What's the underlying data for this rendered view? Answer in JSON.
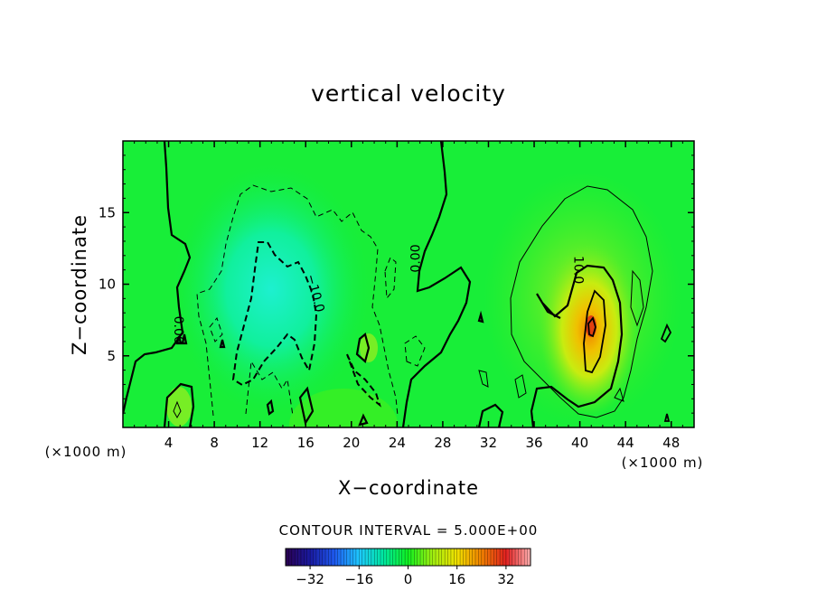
{
  "chart_data": {
    "type": "heatmap",
    "title": "vertical velocity",
    "xlabel": "X−coordinate",
    "ylabel": "Z−coordinate",
    "x_unit": "(×1000 m)",
    "y_unit": "(×1000 m)",
    "xlim": [
      0,
      50
    ],
    "ylim": [
      0,
      20
    ],
    "x_ticks": [
      4,
      8,
      12,
      16,
      20,
      24,
      28,
      32,
      36,
      40,
      44,
      48
    ],
    "x_tick_labels": [
      "4",
      "8",
      "12",
      "16",
      "20",
      "24",
      "28",
      "32",
      "36",
      "40",
      "44",
      "48"
    ],
    "y_ticks": [
      5,
      10,
      15
    ],
    "y_tick_labels": [
      "5",
      "10",
      "15"
    ],
    "contour_interval_text": "CONTOUR INTERVAL = 5.000E+00",
    "contour_interval": 5,
    "contour_labels": [
      {
        "text": "0.00",
        "x": 4.5,
        "z": 6.8,
        "angle": 90
      },
      {
        "text": "−10.0",
        "x": 16.5,
        "z": 9.3,
        "angle": 75
      },
      {
        "text": "0.00",
        "x": 26,
        "z": 11.8,
        "angle": -90
      },
      {
        "text": "10.0",
        "x": 39.5,
        "z": 11.0,
        "angle": 90
      }
    ],
    "colorbar": {
      "min": -40,
      "max": 40,
      "ticks": [
        -32,
        -16,
        0,
        16,
        32
      ],
      "tick_labels": [
        "−32",
        "−16",
        "0",
        "16",
        "32"
      ],
      "colors": [
        "#2a0050",
        "#1a1aa0",
        "#1e5af0",
        "#1ec8ff",
        "#00e8a0",
        "#10f020",
        "#a0ee10",
        "#f0e000",
        "#f08000",
        "#e02020",
        "#ffb0b0"
      ]
    },
    "features": {
      "updraft_max": {
        "x": 40.9,
        "z": 7.5,
        "value": 23
      },
      "downdraft_min": {
        "x": 13,
        "z": 8.5,
        "value": -14
      },
      "background_value": 2
    }
  }
}
